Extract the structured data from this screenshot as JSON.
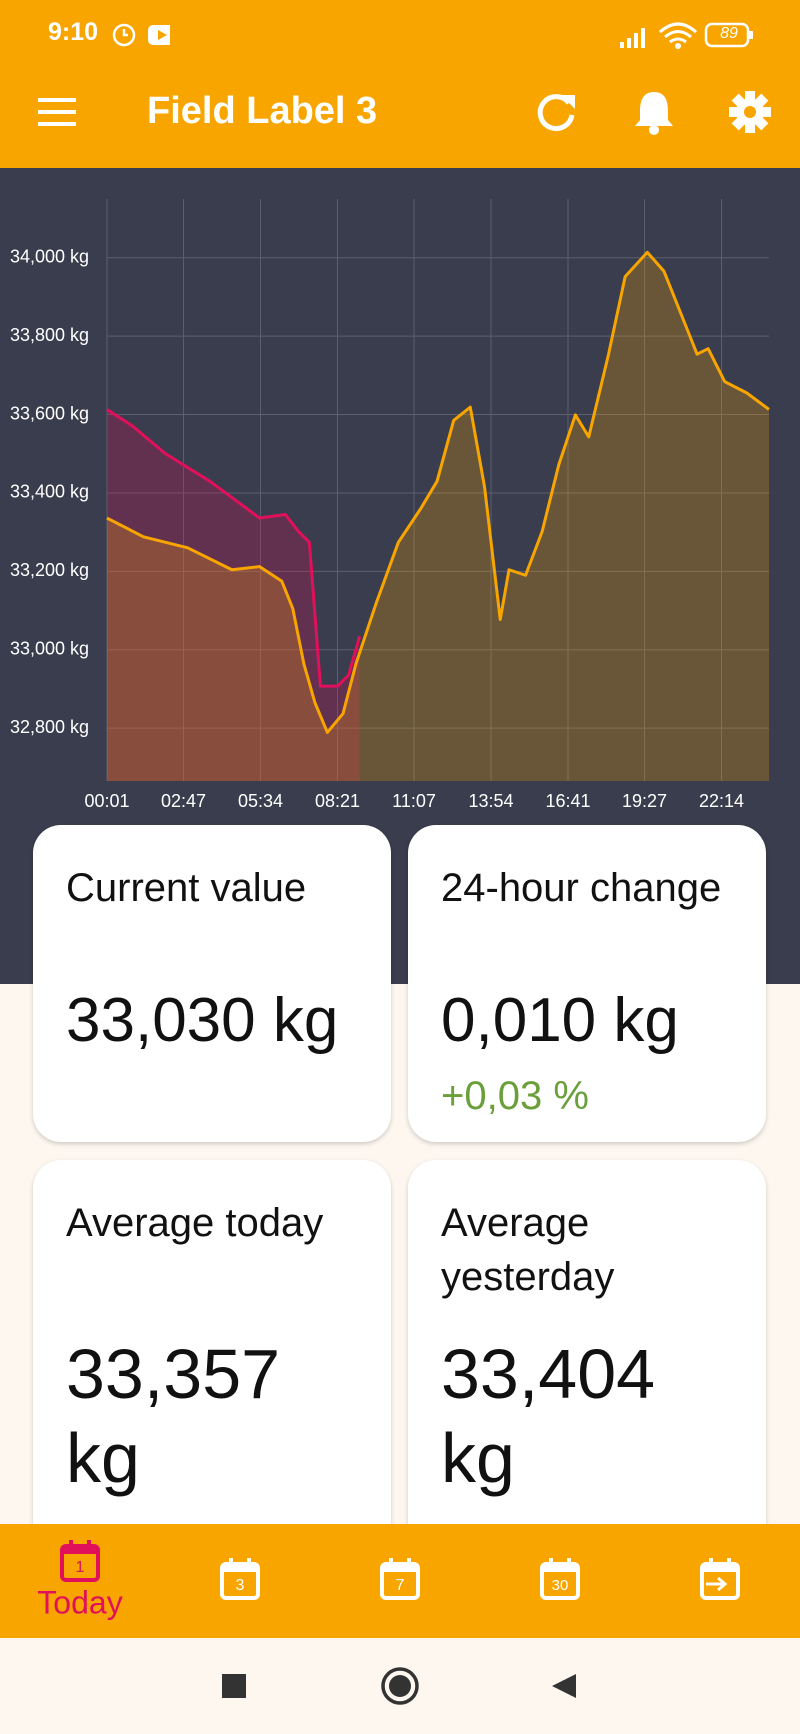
{
  "status_bar": {
    "time": "9:10",
    "battery": "89"
  },
  "app_bar": {
    "title": "Field Label 3"
  },
  "chart_data": {
    "type": "area",
    "xticks": [
      {
        "value": 1,
        "label": "00:01"
      },
      {
        "value": 167,
        "label": "02:47"
      },
      {
        "value": 334,
        "label": "05:34"
      },
      {
        "value": 501,
        "label": "08:21"
      },
      {
        "value": 667,
        "label": "11:07"
      },
      {
        "value": 834,
        "label": "13:54"
      },
      {
        "value": 1001,
        "label": "16:41"
      },
      {
        "value": 1167,
        "label": "19:27"
      },
      {
        "value": 1334,
        "label": "22:14"
      }
    ],
    "xlim": [
      1,
      1437
    ],
    "ylim": [
      32665,
      34150
    ],
    "yticks": [
      {
        "value": 32800,
        "label": "32,800 kg"
      },
      {
        "value": 33000,
        "label": "33,000 kg"
      },
      {
        "value": 33200,
        "label": "33,200 kg"
      },
      {
        "value": 33400,
        "label": "33,400 kg"
      },
      {
        "value": 33600,
        "label": "33,600 kg"
      },
      {
        "value": 33800,
        "label": "33,800 kg"
      },
      {
        "value": 34000,
        "label": "34,000 kg"
      }
    ],
    "grid": true,
    "series": [
      {
        "color": "#e0105a",
        "x": [
          1,
          56,
          128,
          224,
          332,
          388,
          416,
          440,
          464,
          501,
          525,
          549
        ],
        "values": [
          33613,
          33571,
          33500,
          33430,
          33336,
          33345,
          33302,
          33274,
          32907,
          32907,
          32935,
          33034
        ]
      },
      {
        "color": "#f9a500",
        "x": [
          1,
          80,
          176,
          272,
          332,
          380,
          404,
          428,
          452,
          479,
          513,
          541,
          585,
          633,
          681,
          717,
          753,
          789,
          820,
          854,
          873,
          909,
          945,
          981,
          1017,
          1046,
          1089,
          1125,
          1173,
          1209,
          1257,
          1281,
          1305,
          1341,
          1389,
          1437
        ],
        "values": [
          33336,
          33288,
          33260,
          33204,
          33212,
          33175,
          33105,
          32964,
          32865,
          32789,
          32837,
          32964,
          33119,
          33274,
          33359,
          33430,
          33585,
          33619,
          33415,
          33077,
          33204,
          33190,
          33302,
          33472,
          33599,
          33543,
          33754,
          33952,
          34014,
          33966,
          33825,
          33754,
          33768,
          33684,
          33655,
          33613
        ]
      }
    ]
  },
  "cards": [
    {
      "label": "Current value",
      "value": "33,030 kg"
    },
    {
      "label": "24-hour change",
      "value": "0,010 kg",
      "change": "+0,03 %"
    },
    {
      "label": "Average today",
      "value": "33,357 kg"
    },
    {
      "label": "Average yesterday",
      "value": "33,404 kg"
    }
  ],
  "bottom_nav": [
    {
      "label": "Today",
      "icon": "1"
    },
    {
      "icon": "3"
    },
    {
      "icon": "7"
    },
    {
      "icon": "30"
    }
  ]
}
